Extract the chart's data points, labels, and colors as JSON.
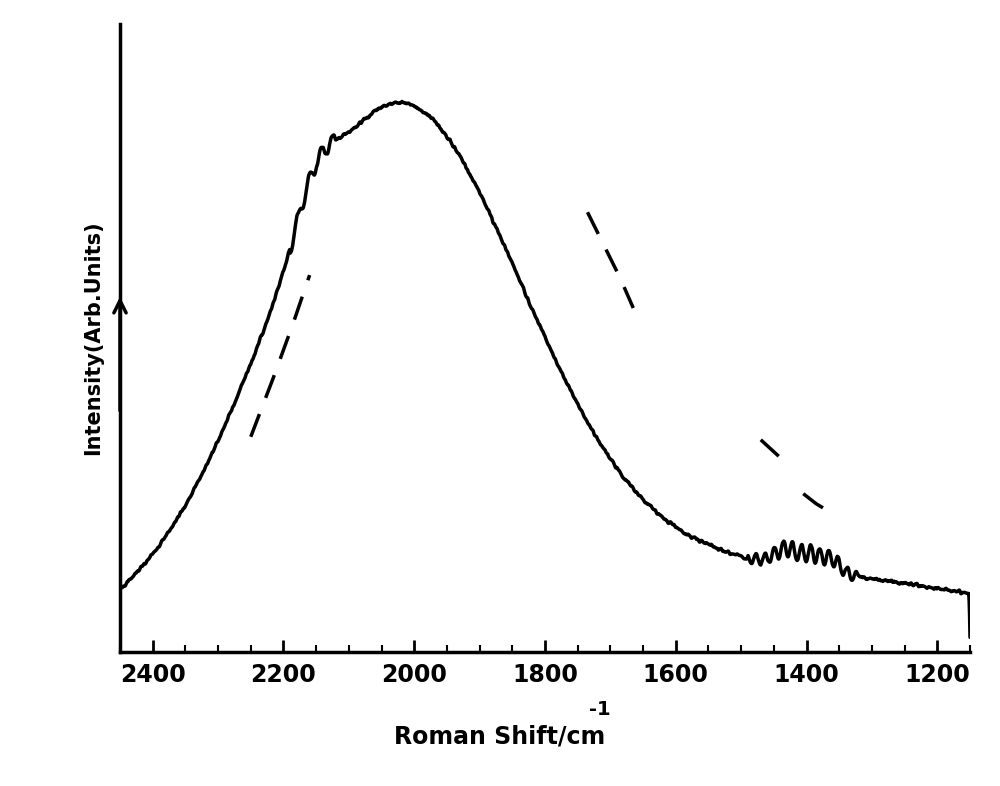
{
  "xlabel_main": "Roman Shift/cm",
  "xlabel_super": "-1",
  "ylabel": "Intensity(Arb.Units)",
  "xlim": [
    2450,
    1150
  ],
  "ylim": [
    0,
    1.05
  ],
  "xticks": [
    2400,
    2200,
    2000,
    1800,
    1600,
    1400,
    1200
  ],
  "background_color": "#ffffff",
  "line_color": "#000000",
  "linewidth": 2.5,
  "dashed_linewidth": 2.5,
  "dashed_color": "#000000"
}
